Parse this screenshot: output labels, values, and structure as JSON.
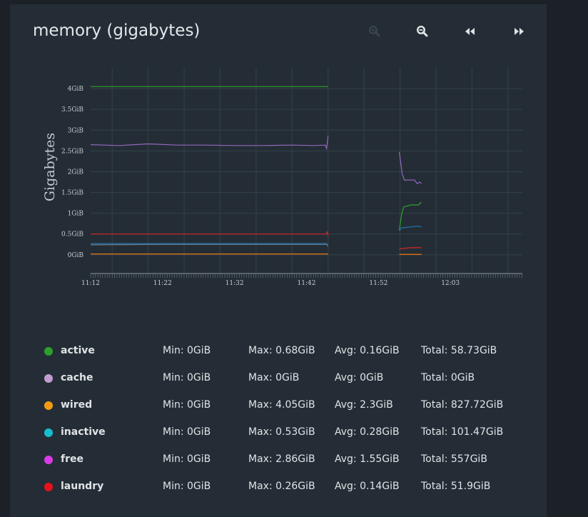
{
  "widget": {
    "title": "memory (gigabytes)"
  },
  "toolbar": [
    {
      "name": "zoom-in-button",
      "icon": "zoom-in-icon",
      "color": "#3a434c"
    },
    {
      "name": "zoom-out-button",
      "icon": "zoom-out-icon",
      "color": "#dfe3e6"
    },
    {
      "name": "rewind-button",
      "icon": "rewind-icon",
      "color": "#dfe3e6"
    },
    {
      "name": "fast-forward-button",
      "icon": "fast-forward-icon",
      "color": "#dfe3e6"
    }
  ],
  "chart_data": {
    "type": "line",
    "ylabel": "Gigabytes",
    "xlabel": "",
    "ylim": [
      -0.45,
      4.5
    ],
    "x_ticks": [
      "11:12",
      "11:22",
      "11:32",
      "11:42",
      "11:52",
      "12:03"
    ],
    "y_ticks": [
      {
        "value": 0,
        "label": "0GiB"
      },
      {
        "value": 0.5,
        "label": "0.5GiB"
      },
      {
        "value": 1,
        "label": "1GiB"
      },
      {
        "value": 1.5,
        "label": "1.5GiB"
      },
      {
        "value": 2,
        "label": "2GiB"
      },
      {
        "value": 2.5,
        "label": "2.5GiB"
      },
      {
        "value": 3,
        "label": "3GiB"
      },
      {
        "value": 3.5,
        "label": "3.5GiB"
      },
      {
        "value": 4,
        "label": "4GiB"
      }
    ],
    "x_range_minutes": [
      0,
      60
    ],
    "grid": true,
    "series": [
      {
        "color": "#2ca02c",
        "segments": [
          [
            [
              0,
              4.05
            ],
            [
              33,
              4.05
            ]
          ],
          [
            [
              42.9,
              0.6
            ],
            [
              43.2,
              0.95
            ],
            [
              43.5,
              1.15
            ],
            [
              44.5,
              1.2
            ],
            [
              45.6,
              1.2
            ],
            [
              45.8,
              1.25
            ],
            [
              46.0,
              1.25
            ]
          ]
        ]
      },
      {
        "color": "#9467bd",
        "segments": [
          [
            [
              0,
              2.65
            ],
            [
              4,
              2.63
            ],
            [
              6,
              2.65
            ],
            [
              8,
              2.67
            ],
            [
              12,
              2.64
            ],
            [
              16,
              2.64
            ],
            [
              20,
              2.63
            ],
            [
              24,
              2.63
            ],
            [
              28,
              2.64
            ],
            [
              31,
              2.63
            ],
            [
              32.6,
              2.64
            ],
            [
              32.8,
              2.56
            ],
            [
              33,
              2.87
            ]
          ],
          [
            [
              42.9,
              2.47
            ],
            [
              43.3,
              1.95
            ],
            [
              43.6,
              1.8
            ],
            [
              45.0,
              1.8
            ],
            [
              45.4,
              1.71
            ],
            [
              45.7,
              1.75
            ],
            [
              46.0,
              1.72
            ]
          ]
        ]
      },
      {
        "color": "#d62728",
        "segments": [
          [
            [
              0,
              0.5
            ],
            [
              10,
              0.5
            ],
            [
              20,
              0.5
            ],
            [
              32.7,
              0.5
            ],
            [
              32.9,
              0.55
            ],
            [
              33,
              0.45
            ]
          ],
          [
            [
              42.9,
              0.13
            ],
            [
              43.2,
              0.15
            ],
            [
              44.5,
              0.17
            ],
            [
              46.0,
              0.17
            ]
          ]
        ]
      },
      {
        "color": "#1f77b4",
        "segments": [
          [
            [
              0,
              0.27
            ],
            [
              10,
              0.27
            ],
            [
              20,
              0.27
            ],
            [
              32.8,
              0.27
            ],
            [
              33,
              0.2
            ]
          ],
          [
            [
              42.9,
              0.58
            ],
            [
              43.2,
              0.65
            ],
            [
              44.5,
              0.67
            ],
            [
              45.5,
              0.69
            ],
            [
              46.0,
              0.67
            ]
          ]
        ]
      },
      {
        "color": "#6d7c8a",
        "segments": [
          [
            [
              0,
              0.24
            ],
            [
              10,
              0.25
            ],
            [
              20,
              0.25
            ],
            [
              32.8,
              0.25
            ],
            [
              33,
              0.22
            ]
          ]
        ]
      },
      {
        "color": "#ff7f0e",
        "segments": [
          [
            [
              0,
              0.02
            ],
            [
              20,
              0.02
            ],
            [
              33,
              0.02
            ]
          ],
          [
            [
              42.9,
              0.01
            ],
            [
              46.0,
              0.01
            ]
          ]
        ]
      }
    ]
  },
  "legend": [
    {
      "name": "active",
      "color": "#2ca02c",
      "min": "Min: 0GiB",
      "max": "Max: 0.68GiB",
      "avg": "Avg: 0.16GiB",
      "total": "Total: 58.73GiB"
    },
    {
      "name": "cache",
      "color": "#c39bd3",
      "min": "Min: 0GiB",
      "max": "Max: 0GiB",
      "avg": "Avg: 0GiB",
      "total": "Total: 0GiB"
    },
    {
      "name": "wired",
      "color": "#f39c12",
      "min": "Min: 0GiB",
      "max": "Max: 4.05GiB",
      "avg": "Avg: 2.3GiB",
      "total": "Total: 827.72GiB"
    },
    {
      "name": "inactive",
      "color": "#17becf",
      "min": "Min: 0GiB",
      "max": "Max: 0.53GiB",
      "avg": "Avg: 0.28GiB",
      "total": "Total: 101.47GiB"
    },
    {
      "name": "free",
      "color": "#d93ce6",
      "min": "Min: 0GiB",
      "max": "Max: 2.86GiB",
      "avg": "Avg: 1.55GiB",
      "total": "Total: 557GiB"
    },
    {
      "name": "laundry",
      "color": "#e8121c",
      "min": "Min: 0GiB",
      "max": "Max: 0.26GiB",
      "avg": "Avg: 0.14GiB",
      "total": "Total: 51.9GiB"
    }
  ]
}
